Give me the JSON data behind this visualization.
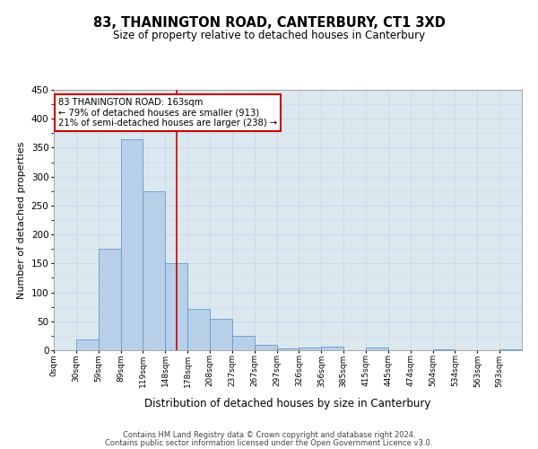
{
  "title": "83, THANINGTON ROAD, CANTERBURY, CT1 3XD",
  "subtitle": "Size of property relative to detached houses in Canterbury",
  "xlabel": "Distribution of detached houses by size in Canterbury",
  "ylabel": "Number of detached properties",
  "bin_labels": [
    "0sqm",
    "30sqm",
    "59sqm",
    "89sqm",
    "119sqm",
    "148sqm",
    "178sqm",
    "208sqm",
    "237sqm",
    "267sqm",
    "297sqm",
    "326sqm",
    "356sqm",
    "385sqm",
    "415sqm",
    "445sqm",
    "474sqm",
    "504sqm",
    "534sqm",
    "563sqm",
    "593sqm"
  ],
  "bar_heights": [
    0,
    18,
    175,
    365,
    275,
    150,
    72,
    55,
    25,
    9,
    3,
    5,
    6,
    0,
    5,
    0,
    0,
    1,
    0,
    0,
    1
  ],
  "bar_color": "#b8cfe8",
  "bar_edge_color": "#6699cc",
  "vline_x_idx": 5,
  "vline_color": "#cc0000",
  "annotation_text": "83 THANINGTON ROAD: 163sqm\n← 79% of detached houses are smaller (913)\n21% of semi-detached houses are larger (238) →",
  "annotation_box_color": "#ffffff",
  "annotation_box_edge": "#cc0000",
  "ylim": [
    0,
    450
  ],
  "yticks": [
    0,
    50,
    100,
    150,
    200,
    250,
    300,
    350,
    400,
    450
  ],
  "grid_color": "#c8d8e8",
  "bg_color": "#dce8f0",
  "footer_line1": "Contains HM Land Registry data © Crown copyright and database right 2024.",
  "footer_line2": "Contains public sector information licensed under the Open Government Licence v3.0."
}
